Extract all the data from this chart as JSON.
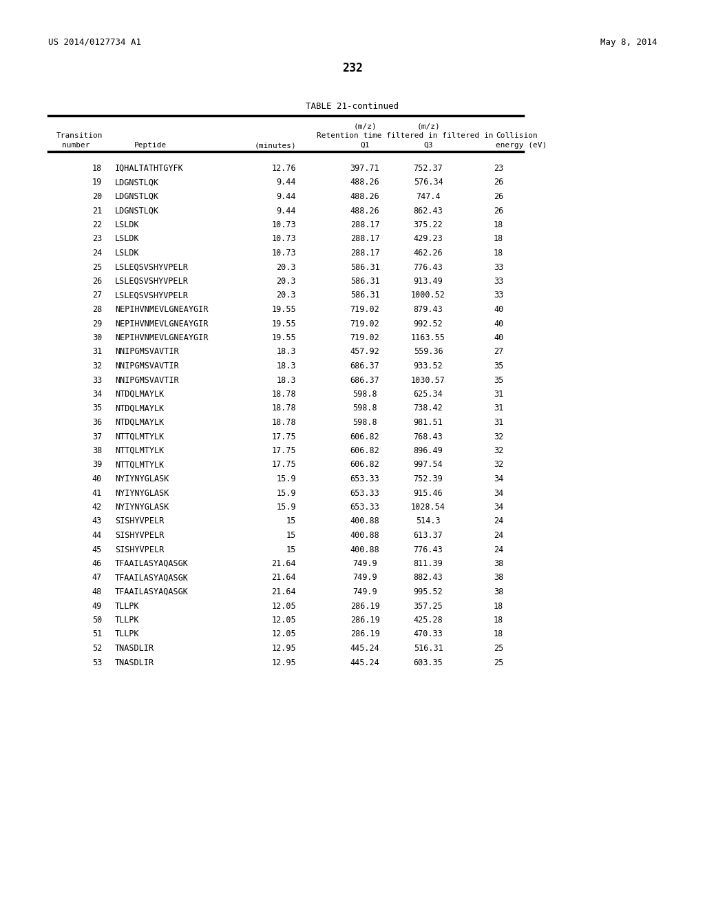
{
  "patent_number": "US 2014/0127734 A1",
  "date": "May 8, 2014",
  "page_number": "232",
  "table_title": "TABLE 21-continued",
  "rows": [
    [
      "18",
      "IQHALTATHTGYFK",
      "12.76",
      "397.71",
      "752.37",
      "23"
    ],
    [
      "19",
      "LDGNSTLQK",
      "9.44",
      "488.26",
      "576.34",
      "26"
    ],
    [
      "20",
      "LDGNSTLQK",
      "9.44",
      "488.26",
      "747.4",
      "26"
    ],
    [
      "21",
      "LDGNSTLQK",
      "9.44",
      "488.26",
      "862.43",
      "26"
    ],
    [
      "22",
      "LSLDK",
      "10.73",
      "288.17",
      "375.22",
      "18"
    ],
    [
      "23",
      "LSLDK",
      "10.73",
      "288.17",
      "429.23",
      "18"
    ],
    [
      "24",
      "LSLDK",
      "10.73",
      "288.17",
      "462.26",
      "18"
    ],
    [
      "25",
      "LSLEQSVSHYVPELR",
      "20.3",
      "586.31",
      "776.43",
      "33"
    ],
    [
      "26",
      "LSLEQSVSHYVPELR",
      "20.3",
      "586.31",
      "913.49",
      "33"
    ],
    [
      "27",
      "LSLEQSVSHYVPELR",
      "20.3",
      "586.31",
      "1000.52",
      "33"
    ],
    [
      "28",
      "NEPIHVNMEVLGNEAYGIR",
      "19.55",
      "719.02",
      "879.43",
      "40"
    ],
    [
      "29",
      "NEPIHVNMEVLGNEAYGIR",
      "19.55",
      "719.02",
      "992.52",
      "40"
    ],
    [
      "30",
      "NEPIHVNMEVLGNEAYGIR",
      "19.55",
      "719.02",
      "1163.55",
      "40"
    ],
    [
      "31",
      "NNIPGMSVAVTIR",
      "18.3",
      "457.92",
      "559.36",
      "27"
    ],
    [
      "32",
      "NNIPGMSVAVTIR",
      "18.3",
      "686.37",
      "933.52",
      "35"
    ],
    [
      "33",
      "NNIPGMSVAVTIR",
      "18.3",
      "686.37",
      "1030.57",
      "35"
    ],
    [
      "34",
      "NTDQLMAYLK",
      "18.78",
      "598.8",
      "625.34",
      "31"
    ],
    [
      "35",
      "NTDQLMAYLK",
      "18.78",
      "598.8",
      "738.42",
      "31"
    ],
    [
      "36",
      "NTDQLMAYLK",
      "18.78",
      "598.8",
      "981.51",
      "31"
    ],
    [
      "37",
      "NTTQLMTYLK",
      "17.75",
      "606.82",
      "768.43",
      "32"
    ],
    [
      "38",
      "NTTQLMTYLK",
      "17.75",
      "606.82",
      "896.49",
      "32"
    ],
    [
      "39",
      "NTTQLMTYLK",
      "17.75",
      "606.82",
      "997.54",
      "32"
    ],
    [
      "40",
      "NYIYNYGLASK",
      "15.9",
      "653.33",
      "752.39",
      "34"
    ],
    [
      "41",
      "NYIYNYGLASK",
      "15.9",
      "653.33",
      "915.46",
      "34"
    ],
    [
      "42",
      "NYIYNYGLASK",
      "15.9",
      "653.33",
      "1028.54",
      "34"
    ],
    [
      "43",
      "SISHYVPELR",
      "15",
      "400.88",
      "514.3",
      "24"
    ],
    [
      "44",
      "SISHYVPELR",
      "15",
      "400.88",
      "613.37",
      "24"
    ],
    [
      "45",
      "SISHYVPELR",
      "15",
      "400.88",
      "776.43",
      "24"
    ],
    [
      "46",
      "TFAAILASYAQASGK",
      "21.64",
      "749.9",
      "811.39",
      "38"
    ],
    [
      "47",
      "TFAAILASYAQASGK",
      "21.64",
      "749.9",
      "882.43",
      "38"
    ],
    [
      "48",
      "TFAAILASYAQASGK",
      "21.64",
      "749.9",
      "995.52",
      "38"
    ],
    [
      "49",
      "TLLPK",
      "12.05",
      "286.19",
      "357.25",
      "18"
    ],
    [
      "50",
      "TLLPK",
      "12.05",
      "286.19",
      "425.28",
      "18"
    ],
    [
      "51",
      "TLLPK",
      "12.05",
      "286.19",
      "470.33",
      "18"
    ],
    [
      "52",
      "TNASDLIR",
      "12.95",
      "445.24",
      "516.31",
      "25"
    ],
    [
      "53",
      "TNASDLIR",
      "12.95",
      "445.24",
      "603.35",
      "25"
    ]
  ],
  "bg_color": "#ffffff",
  "text_color": "#000000"
}
